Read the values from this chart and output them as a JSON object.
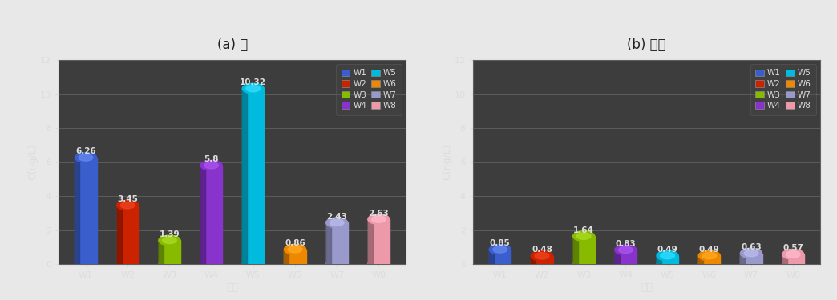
{
  "title_a": "(a) 봄",
  "title_b": "(b) 가을",
  "xlabel": "지점",
  "ylabel": "C(ng/L)",
  "categories": [
    "W1",
    "W2",
    "W3",
    "W4",
    "W5",
    "W6",
    "W7",
    "W8"
  ],
  "values_a": [
    6.26,
    3.45,
    1.39,
    5.8,
    10.32,
    0.86,
    2.43,
    2.63
  ],
  "values_b": [
    0.85,
    0.48,
    1.64,
    0.83,
    0.49,
    0.49,
    0.63,
    0.57
  ],
  "bar_colors": [
    "#3a5fcd",
    "#cc2200",
    "#88bb00",
    "#8833cc",
    "#00bbdd",
    "#ee8800",
    "#9999cc",
    "#ee99aa"
  ],
  "bar_colors_dark": [
    "#1a3fad",
    "#aa1100",
    "#5a8800",
    "#5511aa",
    "#0099bb",
    "#cc6600",
    "#7777aa",
    "#cc7788"
  ],
  "bar_colors_light": [
    "#6688ee",
    "#ee4422",
    "#aadd22",
    "#aa55ee",
    "#33ddff",
    "#ffaa22",
    "#bbbbee",
    "#ffbbcc"
  ],
  "ylim_a": [
    0,
    12
  ],
  "ylim_b": [
    0,
    12
  ],
  "yticks": [
    0,
    2,
    4,
    6,
    8,
    10,
    12
  ],
  "bg_color": "#3d3d3d",
  "grid_color": "#606060",
  "fig_bg": "#e8e8e8",
  "text_color": "#dddddd",
  "title_color": "#222222",
  "legend_pairs": [
    [
      "W1",
      "W2"
    ],
    [
      "W3",
      "W4"
    ],
    [
      "W5",
      "W6"
    ],
    [
      "W7",
      "W8"
    ]
  ],
  "title_fontsize": 12,
  "label_fontsize": 9,
  "tick_fontsize": 8,
  "value_fontsize": 7.5
}
